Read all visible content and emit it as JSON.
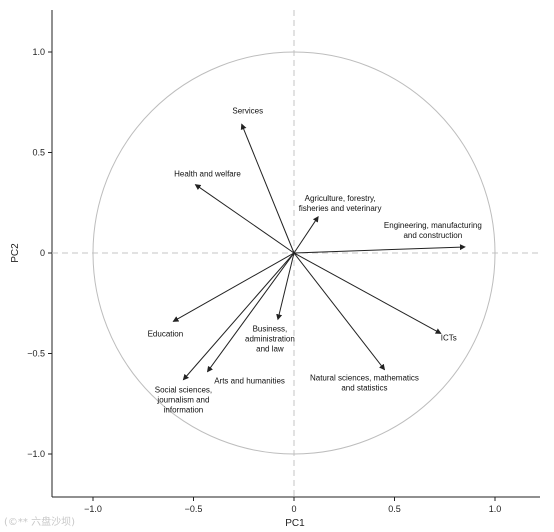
{
  "chart_data": {
    "type": "scatter",
    "subtype": "biplot",
    "title": "",
    "xlabel": "PC1",
    "ylabel": "PC2",
    "xlim": [
      -1.2,
      1.2
    ],
    "ylim": [
      -1.2,
      1.2
    ],
    "x_ticks": [
      -1.0,
      -0.5,
      0,
      0.5,
      1.0
    ],
    "y_ticks": [
      -1.0,
      -0.5,
      0,
      0.5,
      1.0
    ],
    "x_tick_labels": [
      "−1.0",
      "−0.5",
      "0",
      "0.5",
      "1.0"
    ],
    "y_tick_labels": [
      "−1.0",
      "−0.5",
      "0",
      "0.5",
      "1.0"
    ],
    "grid": false,
    "reference_lines": "dashed lines at x=0 and y=0",
    "unit_circle": true,
    "circle_color": "#bdbdbd",
    "arrow_color": "#222222",
    "vectors": [
      {
        "label": [
          "Services"
        ],
        "x": -0.26,
        "y": 0.64
      },
      {
        "label": [
          "Health and welfare"
        ],
        "x": -0.49,
        "y": 0.34
      },
      {
        "label": [
          "Agriculture, forestry,",
          "fisheries and veterinary"
        ],
        "x": 0.12,
        "y": 0.18
      },
      {
        "label": [
          "Engineering, manufacturing",
          "and construction"
        ],
        "x": 0.85,
        "y": 0.03
      },
      {
        "label": [
          "ICTs"
        ],
        "x": 0.73,
        "y": -0.4
      },
      {
        "label": [
          "Natural sciences, mathematics",
          "and statistics"
        ],
        "x": 0.45,
        "y": -0.58
      },
      {
        "label": [
          "Business,",
          "administration",
          "and law"
        ],
        "x": -0.08,
        "y": -0.33
      },
      {
        "label": [
          "Arts and humanities"
        ],
        "x": -0.43,
        "y": -0.59
      },
      {
        "label": [
          "Social sciences,",
          "journalism and",
          "information"
        ],
        "x": -0.55,
        "y": -0.63
      },
      {
        "label": [
          "Education"
        ],
        "x": -0.6,
        "y": -0.34
      }
    ]
  },
  "watermark": "(©** 六盘沙坝)"
}
